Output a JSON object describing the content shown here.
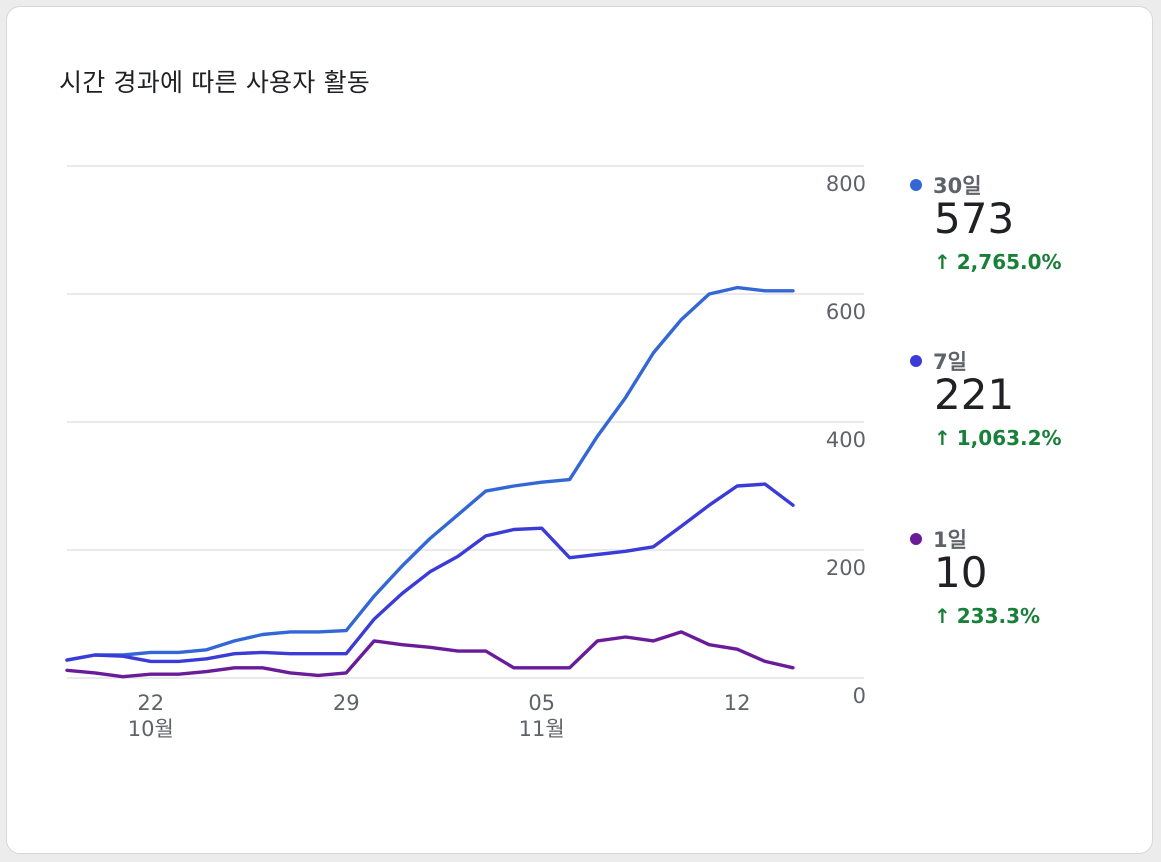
{
  "card": {
    "title": "시간 경과에 따른 사용자 활동"
  },
  "chart_data": {
    "type": "line",
    "title": "시간 경과에 따른 사용자 활동",
    "xlabel": "",
    "ylabel": "",
    "ylim": [
      0,
      800
    ],
    "yticks": [
      "800",
      "600",
      "400",
      "200",
      "0"
    ],
    "ytick_values": [
      800,
      600,
      400,
      200,
      0
    ],
    "grid": true,
    "legend_position": "right",
    "x_start_day": 0,
    "x_end_day": 26,
    "xticks": [
      {
        "day": 3,
        "label": "22",
        "sublabel": "10월"
      },
      {
        "day": 10,
        "label": "29",
        "sublabel": ""
      },
      {
        "day": 17,
        "label": "05",
        "sublabel": "11월"
      },
      {
        "day": 24,
        "label": "12",
        "sublabel": ""
      }
    ],
    "series": [
      {
        "name": "30일",
        "color": "#3367d6",
        "x": [
          0,
          1,
          2,
          3,
          4,
          5,
          6,
          7,
          8,
          9,
          10,
          11,
          12,
          13,
          14,
          15,
          16,
          17,
          18,
          19,
          20,
          21,
          22,
          23,
          24,
          25,
          26
        ],
        "values": [
          28,
          36,
          36,
          40,
          40,
          44,
          58,
          68,
          72,
          72,
          74,
          128,
          175,
          218,
          255,
          292,
          300,
          306,
          310,
          378,
          438,
          508,
          560,
          600,
          610,
          605,
          605
        ]
      },
      {
        "name": "7일",
        "color": "#3b3bd8",
        "x": [
          0,
          1,
          2,
          3,
          4,
          5,
          6,
          7,
          8,
          9,
          10,
          11,
          12,
          13,
          14,
          15,
          16,
          17,
          18,
          19,
          20,
          21,
          22,
          23,
          24,
          25,
          26
        ],
        "values": [
          28,
          36,
          34,
          26,
          26,
          30,
          38,
          40,
          38,
          38,
          38,
          92,
          132,
          166,
          190,
          222,
          232,
          234,
          188,
          193,
          198,
          205,
          237,
          270,
          300,
          303,
          270
        ]
      },
      {
        "name": "1일",
        "color": "#6a1b9a",
        "x": [
          0,
          1,
          2,
          3,
          4,
          5,
          6,
          7,
          8,
          9,
          10,
          11,
          12,
          13,
          14,
          15,
          16,
          17,
          18,
          19,
          20,
          21,
          22,
          23,
          24,
          25,
          26
        ],
        "values": [
          12,
          8,
          2,
          6,
          6,
          10,
          16,
          16,
          8,
          4,
          8,
          58,
          52,
          48,
          42,
          42,
          16,
          16,
          16,
          58,
          64,
          58,
          72,
          52,
          45,
          26,
          16
        ]
      }
    ]
  },
  "legend": [
    {
      "label": "30일",
      "value": "573",
      "change": "2,765.0%",
      "color": "#3367d6"
    },
    {
      "label": "7일",
      "value": "221",
      "change": "1,063.2%",
      "color": "#3b3bd8"
    },
    {
      "label": "1일",
      "value": "10",
      "change": "233.3%",
      "color": "#6a1b9a"
    }
  ],
  "colors": {
    "gridline": "#e3e3e3",
    "tick_text": "#5f6368",
    "positive_change": "#188038"
  }
}
